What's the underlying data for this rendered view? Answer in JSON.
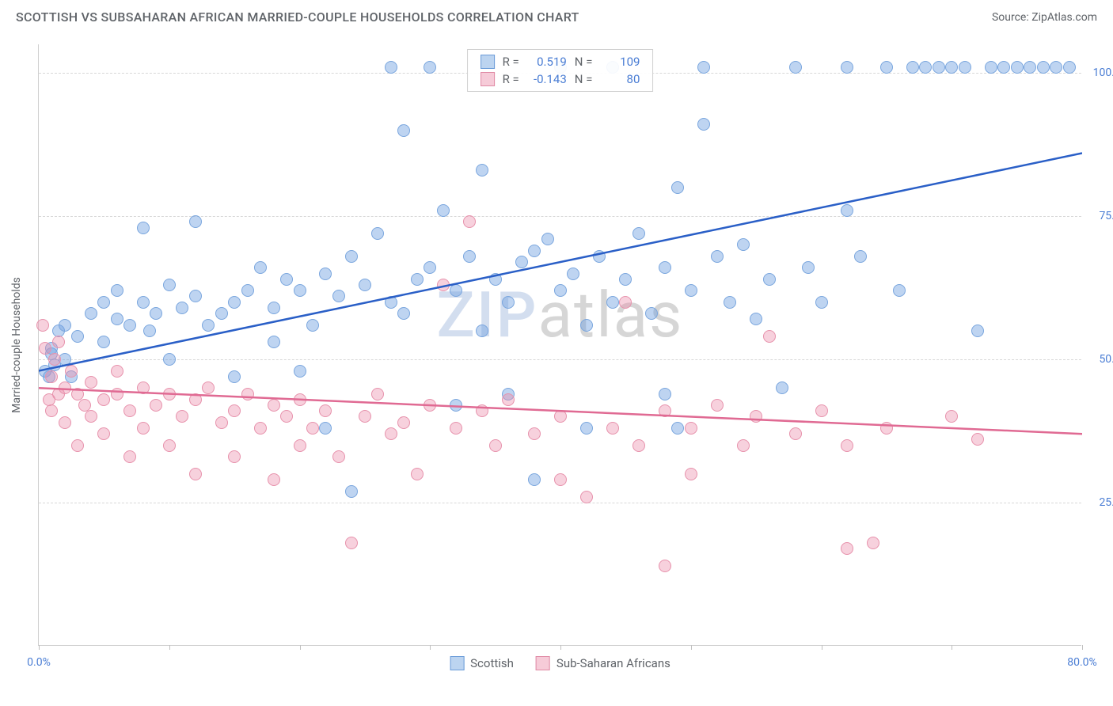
{
  "header": {
    "title": "SCOTTISH VS SUBSAHARAN AFRICAN MARRIED-COUPLE HOUSEHOLDS CORRELATION CHART",
    "source_label": "Source: ",
    "source_value": "ZipAtlas.com"
  },
  "chart": {
    "type": "scatter",
    "y_axis_title": "Married-couple Households",
    "xlim": [
      0,
      80
    ],
    "ylim": [
      0,
      105
    ],
    "x_ticks": [
      0,
      10,
      20,
      30,
      40,
      50,
      60,
      70,
      80
    ],
    "x_tick_labels": {
      "0": "0.0%",
      "80": "80.0%"
    },
    "y_grid": [
      25,
      50,
      75,
      100
    ],
    "y_tick_labels": {
      "25": "25.0%",
      "50": "50.0%",
      "75": "75.0%",
      "100": "100.0%"
    },
    "background_color": "#ffffff",
    "grid_color": "#d8d8d8",
    "axis_color": "#d0d0d0",
    "tick_label_color": "#4a7dd4",
    "marker_radius": 8,
    "marker_stroke_width": 1.5,
    "trend_line_width": 2.5,
    "watermark": {
      "part1": "ZIP",
      "part2": "atlas"
    }
  },
  "series": [
    {
      "name": "Scottish",
      "label": "Scottish",
      "marker_fill": "rgba(110,160,225,0.45)",
      "marker_stroke": "#7aa6de",
      "swatch_fill": "#bcd4f0",
      "swatch_border": "#6a9bd8",
      "trend_color": "#2a5fc7",
      "trend": {
        "x0": 0,
        "y0": 48,
        "x1": 80,
        "y1": 86
      },
      "stats": {
        "R": "0.519",
        "N": "109"
      },
      "points": [
        [
          0.5,
          48
        ],
        [
          0.8,
          47
        ],
        [
          1,
          51
        ],
        [
          1,
          52
        ],
        [
          1.2,
          49
        ],
        [
          1.5,
          55
        ],
        [
          2,
          50
        ],
        [
          2,
          56
        ],
        [
          2.5,
          47
        ],
        [
          3,
          54
        ],
        [
          4,
          58
        ],
        [
          5,
          53
        ],
        [
          5,
          60
        ],
        [
          6,
          57
        ],
        [
          6,
          62
        ],
        [
          7,
          56
        ],
        [
          8,
          60
        ],
        [
          8,
          73
        ],
        [
          8.5,
          55
        ],
        [
          9,
          58
        ],
        [
          10,
          63
        ],
        [
          10,
          50
        ],
        [
          11,
          59
        ],
        [
          12,
          61
        ],
        [
          12,
          74
        ],
        [
          13,
          56
        ],
        [
          14,
          58
        ],
        [
          15,
          60
        ],
        [
          15,
          47
        ],
        [
          16,
          62
        ],
        [
          17,
          66
        ],
        [
          18,
          59
        ],
        [
          18,
          53
        ],
        [
          19,
          64
        ],
        [
          20,
          62
        ],
        [
          20,
          48
        ],
        [
          21,
          56
        ],
        [
          22,
          65
        ],
        [
          22,
          38
        ],
        [
          23,
          61
        ],
        [
          24,
          68
        ],
        [
          24,
          27
        ],
        [
          25,
          63
        ],
        [
          26,
          72
        ],
        [
          27,
          60
        ],
        [
          27,
          101
        ],
        [
          28,
          90
        ],
        [
          28,
          58
        ],
        [
          29,
          64
        ],
        [
          30,
          66
        ],
        [
          30,
          101
        ],
        [
          31,
          76
        ],
        [
          32,
          62
        ],
        [
          32,
          42
        ],
        [
          33,
          68
        ],
        [
          34,
          83
        ],
        [
          34,
          55
        ],
        [
          35,
          64
        ],
        [
          36,
          60
        ],
        [
          36,
          44
        ],
        [
          37,
          67
        ],
        [
          38,
          69
        ],
        [
          38,
          29
        ],
        [
          39,
          71
        ],
        [
          40,
          62
        ],
        [
          40,
          101
        ],
        [
          41,
          65
        ],
        [
          42,
          56
        ],
        [
          42,
          38
        ],
        [
          43,
          68
        ],
        [
          44,
          60
        ],
        [
          44,
          101
        ],
        [
          45,
          64
        ],
        [
          46,
          72
        ],
        [
          47,
          58
        ],
        [
          48,
          66
        ],
        [
          48,
          44
        ],
        [
          49,
          80
        ],
        [
          49,
          38
        ],
        [
          50,
          62
        ],
        [
          51,
          101
        ],
        [
          51,
          91
        ],
        [
          52,
          68
        ],
        [
          53,
          60
        ],
        [
          54,
          70
        ],
        [
          55,
          57
        ],
        [
          56,
          64
        ],
        [
          57,
          45
        ],
        [
          58,
          101
        ],
        [
          59,
          66
        ],
        [
          60,
          60
        ],
        [
          62,
          101
        ],
        [
          62,
          76
        ],
        [
          63,
          68
        ],
        [
          65,
          101
        ],
        [
          66,
          62
        ],
        [
          67,
          101
        ],
        [
          68,
          101
        ],
        [
          69,
          101
        ],
        [
          70,
          101
        ],
        [
          71,
          101
        ],
        [
          72,
          55
        ],
        [
          73,
          101
        ],
        [
          74,
          101
        ],
        [
          75,
          101
        ],
        [
          76,
          101
        ],
        [
          77,
          101
        ],
        [
          78,
          101
        ],
        [
          79,
          101
        ]
      ]
    },
    {
      "name": "Sub-Saharan Africans",
      "label": "Sub-Saharan Africans",
      "marker_fill": "rgba(235,140,170,0.40)",
      "marker_stroke": "#e792ac",
      "swatch_fill": "#f6cbd8",
      "swatch_border": "#e08aa5",
      "trend_color": "#e06a93",
      "trend": {
        "x0": 0,
        "y0": 45,
        "x1": 80,
        "y1": 37
      },
      "stats": {
        "R": "-0.143",
        "N": "80"
      },
      "points": [
        [
          0.3,
          56
        ],
        [
          0.5,
          52
        ],
        [
          0.8,
          43
        ],
        [
          1,
          47
        ],
        [
          1,
          41
        ],
        [
          1.2,
          50
        ],
        [
          1.5,
          44
        ],
        [
          1.5,
          53
        ],
        [
          2,
          45
        ],
        [
          2,
          39
        ],
        [
          2.5,
          48
        ],
        [
          3,
          44
        ],
        [
          3,
          35
        ],
        [
          3.5,
          42
        ],
        [
          4,
          46
        ],
        [
          4,
          40
        ],
        [
          5,
          43
        ],
        [
          5,
          37
        ],
        [
          6,
          44
        ],
        [
          6,
          48
        ],
        [
          7,
          41
        ],
        [
          7,
          33
        ],
        [
          8,
          45
        ],
        [
          8,
          38
        ],
        [
          9,
          42
        ],
        [
          10,
          44
        ],
        [
          10,
          35
        ],
        [
          11,
          40
        ],
        [
          12,
          43
        ],
        [
          12,
          30
        ],
        [
          13,
          45
        ],
        [
          14,
          39
        ],
        [
          15,
          41
        ],
        [
          15,
          33
        ],
        [
          16,
          44
        ],
        [
          17,
          38
        ],
        [
          18,
          42
        ],
        [
          18,
          29
        ],
        [
          19,
          40
        ],
        [
          20,
          43
        ],
        [
          20,
          35
        ],
        [
          21,
          38
        ],
        [
          22,
          41
        ],
        [
          23,
          33
        ],
        [
          24,
          18
        ],
        [
          25,
          40
        ],
        [
          26,
          44
        ],
        [
          27,
          37
        ],
        [
          28,
          39
        ],
        [
          29,
          30
        ],
        [
          30,
          42
        ],
        [
          31,
          63
        ],
        [
          32,
          38
        ],
        [
          33,
          74
        ],
        [
          34,
          41
        ],
        [
          35,
          35
        ],
        [
          36,
          43
        ],
        [
          38,
          37
        ],
        [
          40,
          40
        ],
        [
          40,
          29
        ],
        [
          42,
          26
        ],
        [
          44,
          38
        ],
        [
          45,
          60
        ],
        [
          46,
          35
        ],
        [
          48,
          41
        ],
        [
          48,
          14
        ],
        [
          50,
          38
        ],
        [
          50,
          30
        ],
        [
          52,
          42
        ],
        [
          54,
          35
        ],
        [
          55,
          40
        ],
        [
          56,
          54
        ],
        [
          58,
          37
        ],
        [
          60,
          41
        ],
        [
          62,
          17
        ],
        [
          62,
          35
        ],
        [
          64,
          18
        ],
        [
          65,
          38
        ],
        [
          70,
          40
        ],
        [
          72,
          36
        ]
      ]
    }
  ],
  "legend": {
    "R_label": "R =",
    "N_label": "N ="
  }
}
